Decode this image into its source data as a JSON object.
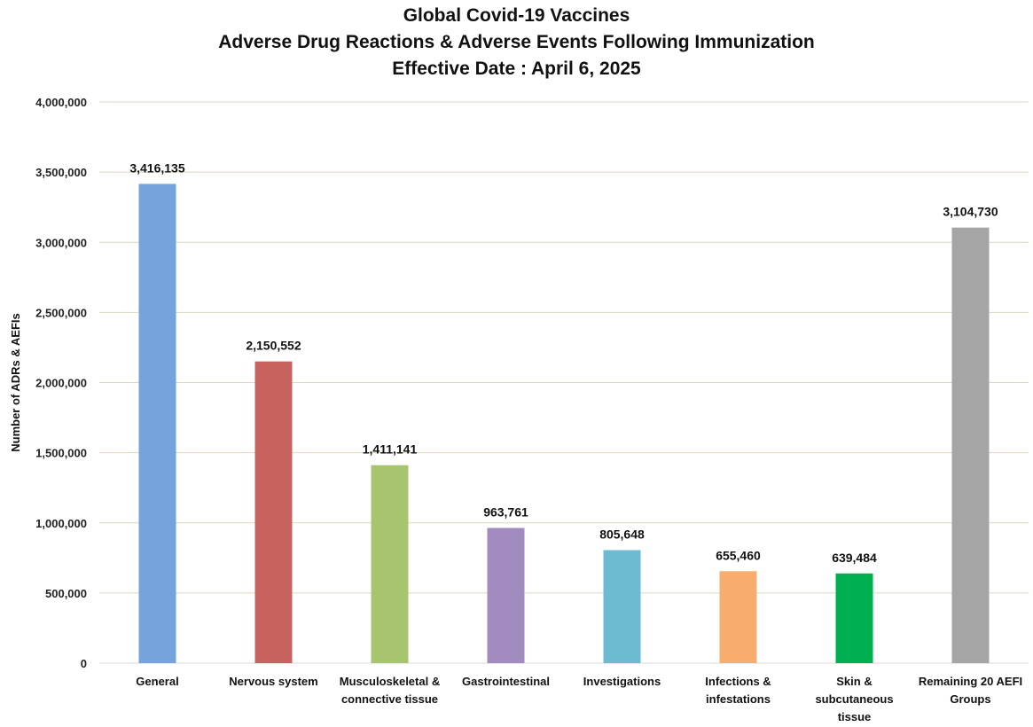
{
  "chart_data": {
    "type": "bar",
    "title": [
      "Global Covid-19 Vaccines",
      "Adverse Drug Reactions & Adverse Events Following Immunization",
      "Effective Date : April 6, 2025"
    ],
    "xlabel": "",
    "ylabel": "Number of ADRs & AEFIs",
    "ylim": [
      0,
      4000000
    ],
    "yticks": [
      0,
      500000,
      1000000,
      1500000,
      2000000,
      2500000,
      3000000,
      3500000,
      4000000
    ],
    "ytick_labels": [
      "0",
      "500,000",
      "1,000,000",
      "1,500,000",
      "2,000,000",
      "2,500,000",
      "3,000,000",
      "3,500,000",
      "4,000,000"
    ],
    "grid": true,
    "legend": "none",
    "categories": [
      [
        "General"
      ],
      [
        "Nervous system"
      ],
      [
        "Musculoskeletal &",
        "connective tissue"
      ],
      [
        "Gastrointestinal"
      ],
      [
        "Investigations"
      ],
      [
        "Infections &",
        "infestations"
      ],
      [
        "Skin &",
        "subcutaneous",
        "tissue"
      ],
      [
        "Remaining 20 AEFI",
        "Groups"
      ]
    ],
    "values": [
      3416135,
      2150552,
      1411141,
      963761,
      805648,
      655460,
      639484,
      3104730
    ],
    "data_labels": [
      "3,416,135",
      "2,150,552",
      "1,411,141",
      "963,761",
      "805,648",
      "655,460",
      "639,484",
      "3,104,730"
    ],
    "colors": [
      "#75a3dc",
      "#c8625f",
      "#a7c46f",
      "#a28bbf",
      "#6cbbd1",
      "#f6ad6d",
      "#00b050",
      "#a5a5a5"
    ],
    "grid_color": "#dcd7c0"
  }
}
